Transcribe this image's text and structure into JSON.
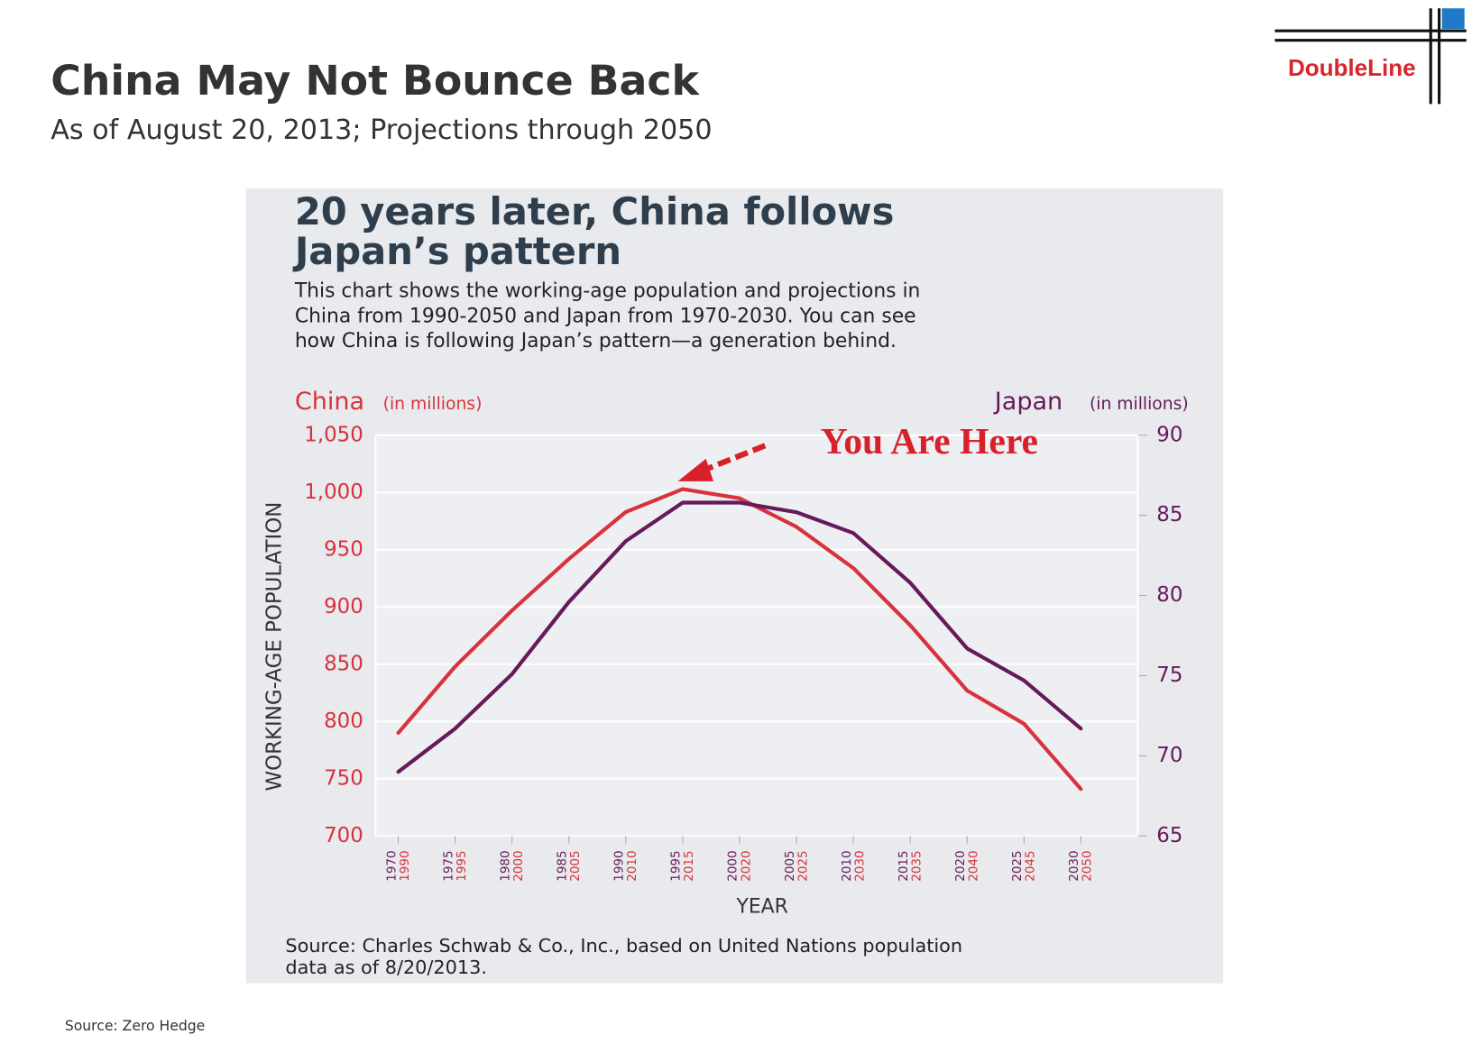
{
  "slide_title": "China May Not Bounce Back",
  "slide_subtitle": "As of August 20, 2013; Projections through 2050",
  "logo": "DoubleLine",
  "slide_source": "Source: Zero Hedge",
  "chart_data": {
    "type": "line",
    "title": [
      "20 years later, China follows",
      "Japan’s pattern"
    ],
    "description": [
      "This chart shows the working-age population and projections in",
      "China from 1990-2050 and Japan from 1970-2030. You can see",
      "how China is following Japan’s pattern—a generation behind."
    ],
    "y_label": "China",
    "y_unit": "(in millions)",
    "y2_label": "Japan",
    "y2_unit": "(in millions)",
    "y_axis_title": "WORKING-AGE POPULATION",
    "x_axis_title": "YEAR",
    "annotation": "You Are Here",
    "source": [
      "Source: Charles Schwab & Co., Inc., based on United Nations population",
      "data as of 8/20/2013."
    ],
    "x": [
      1990,
      1995,
      2000,
      2005,
      2010,
      2015,
      2020,
      2025,
      2030,
      2035,
      2040,
      2045,
      2050
    ],
    "xlim": [
      1988,
      2055
    ],
    "xticks": [
      {
        "value": 1990,
        "label": [
          "1970",
          "1990"
        ]
      },
      {
        "value": 1995,
        "label": [
          "1975",
          "1995"
        ]
      },
      {
        "value": 2000,
        "label": [
          "1980",
          "2000"
        ]
      },
      {
        "value": 2005,
        "label": [
          "1985",
          "2005"
        ]
      },
      {
        "value": 2010,
        "label": [
          "1990",
          "2010"
        ]
      },
      {
        "value": 2015,
        "label": [
          "1995",
          "2015"
        ]
      },
      {
        "value": 2020,
        "label": [
          "2000",
          "2020"
        ]
      },
      {
        "value": 2025,
        "label": [
          "2005",
          "2025"
        ]
      },
      {
        "value": 2030,
        "label": [
          "2010",
          "2030"
        ]
      },
      {
        "value": 2035,
        "label": [
          "2015",
          "2035"
        ]
      },
      {
        "value": 2040,
        "label": [
          "2020",
          "2040"
        ]
      },
      {
        "value": 2045,
        "label": [
          "2025",
          "2045"
        ]
      },
      {
        "value": 2050,
        "label": [
          "2030",
          "2050"
        ]
      }
    ],
    "ylim": [
      700,
      1050
    ],
    "yticks": [
      700,
      750,
      800,
      850,
      900,
      950,
      {
        "value": 1000,
        "label": "1,000"
      },
      {
        "value": 1050,
        "label": "1,050"
      }
    ],
    "y2lim": [
      65,
      90
    ],
    "y2ticks": [
      65,
      70,
      75,
      80,
      85,
      90
    ],
    "grid": true,
    "series": [
      {
        "name": "China",
        "color": "#d8323c",
        "values": [
          790,
          848,
          897,
          942,
          983,
          1003,
          995,
          970,
          934,
          884,
          827,
          798,
          741
        ]
      },
      {
        "name": "Japan",
        "color": "#661a5a",
        "axis": "y2",
        "values": [
          69.0,
          71.7,
          75.1,
          79.6,
          83.4,
          85.8,
          85.8,
          85.2,
          83.9,
          80.8,
          76.7,
          74.7,
          71.7
        ]
      }
    ]
  }
}
